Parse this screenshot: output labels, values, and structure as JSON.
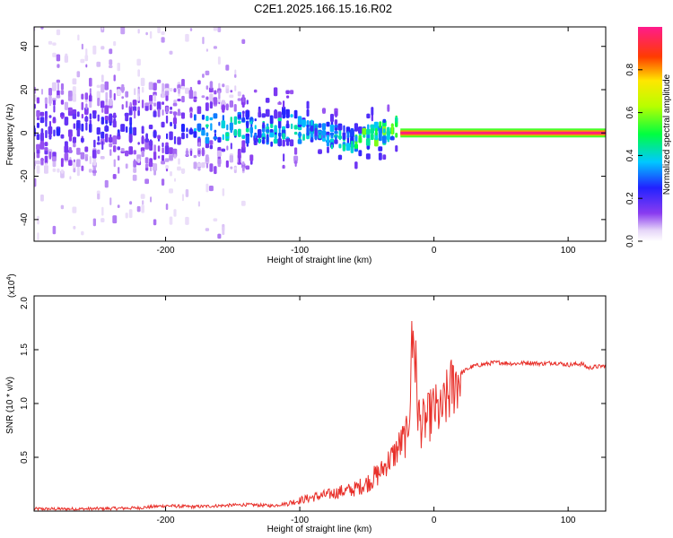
{
  "title": "C2E1.2025.166.15.16.R02",
  "chart_data": [
    {
      "type": "heatmap",
      "xlabel": "Height of straight line (km)",
      "ylabel": "Frequency (Hz)",
      "xlim": [
        -298,
        128
      ],
      "ylim": [
        -50,
        49
      ],
      "xticks": [
        -200,
        -100,
        0,
        100
      ],
      "yticks": [
        -40,
        -20,
        0,
        20,
        40
      ],
      "colorbar": {
        "label": "Normalized spectral amplitude",
        "range": [
          0,
          1
        ],
        "ticks": [
          "0.0",
          "0.2",
          "0.4",
          "0.6",
          "0.8"
        ],
        "colormap": "white-violet-blue-cyan-green-yellow-red-magenta"
      },
      "description_features": {
        "line_frequency_hz": 0,
        "line_x_range_km": [
          -25,
          128
        ]
      }
    },
    {
      "type": "line",
      "xlabel": "Height of straight line (km)",
      "ylabel": "SNR (10 * v/v)",
      "yscale_label": "(x10^4)",
      "xlim": [
        -298,
        128
      ],
      "ylim": [
        0,
        2.0
      ],
      "xticks": [
        -200,
        -100,
        0,
        100
      ],
      "yticks": [
        0.5,
        1.0,
        1.5,
        2.0
      ],
      "ytick_labels": [
        "0.5",
        "1.0",
        "1.5",
        "2.0"
      ],
      "color": "#e8302a",
      "series": [
        {
          "x": [
            -298,
            -260,
            -220,
            -200,
            -180,
            -160,
            -140,
            -120,
            -110,
            -100,
            -90,
            -80,
            -70,
            -60,
            -50,
            -40,
            -35,
            -30,
            -25,
            -20,
            -17,
            -15,
            -12,
            -10,
            -5,
            0,
            5,
            10,
            15,
            20,
            25,
            30,
            35,
            40,
            45,
            50,
            60,
            70,
            80,
            90,
            100,
            110,
            115,
            120,
            128
          ],
          "y": [
            0.02,
            0.02,
            0.03,
            0.05,
            0.04,
            0.05,
            0.06,
            0.05,
            0.07,
            0.1,
            0.13,
            0.15,
            0.18,
            0.2,
            0.26,
            0.36,
            0.45,
            0.52,
            0.62,
            0.7,
            1.2,
            1.6,
            0.95,
            0.8,
            0.85,
            0.95,
            0.9,
            1.05,
            1.2,
            1.28,
            1.32,
            1.35,
            1.36,
            1.37,
            1.38,
            1.38,
            1.37,
            1.38,
            1.37,
            1.38,
            1.36,
            1.37,
            1.33,
            1.34,
            1.35
          ]
        }
      ]
    }
  ]
}
